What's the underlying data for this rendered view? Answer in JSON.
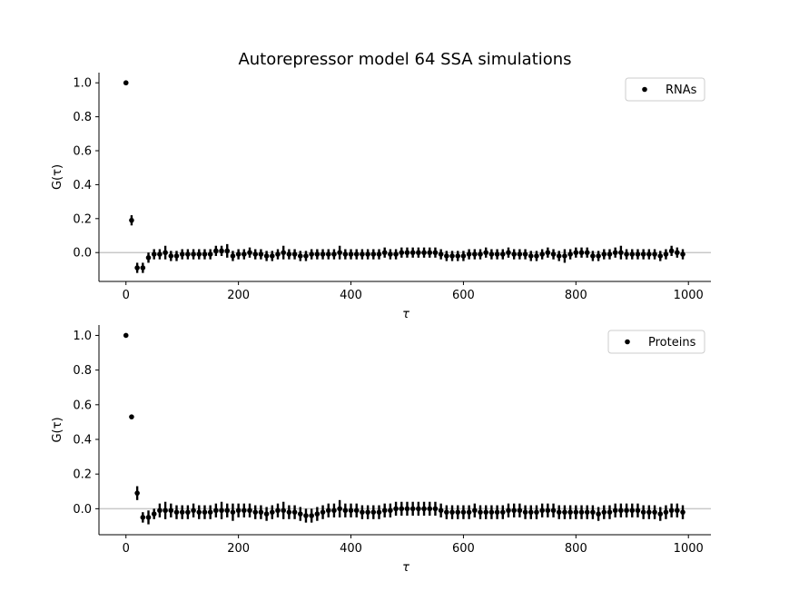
{
  "title": "Autorepressor model 64 SSA simulations",
  "colors": {
    "marker": "#000000",
    "zero_line": "#c8c8c8",
    "legend_border": "#cccccc"
  },
  "chart_data": [
    {
      "type": "scatter",
      "title": "Autorepressor model 64 SSA simulations",
      "xlabel": "τ",
      "ylabel": "G(τ)",
      "xlim": [
        -48,
        1040
      ],
      "ylim": [
        -0.17,
        1.06
      ],
      "xticks": [
        0,
        200,
        400,
        600,
        800,
        1000
      ],
      "xtick_labels": [
        "0",
        "200",
        "400",
        "600",
        "800",
        "1000"
      ],
      "yticks": [
        1.0,
        0.8,
        0.6,
        0.4,
        0.2,
        0.0
      ],
      "ytick_labels": [
        "1.0",
        "0.8",
        "0.6",
        "0.4",
        "0.2",
        "0.0"
      ],
      "reference_line_y": 0,
      "grid": false,
      "legend_position": "top-right",
      "series": [
        {
          "name": "RNAs",
          "x": [
            0,
            10,
            20,
            30,
            40,
            50,
            60,
            70,
            80,
            90,
            100,
            110,
            120,
            130,
            140,
            150,
            160,
            170,
            180,
            190,
            200,
            210,
            220,
            230,
            240,
            250,
            260,
            270,
            280,
            290,
            300,
            310,
            320,
            330,
            340,
            350,
            360,
            370,
            380,
            390,
            400,
            410,
            420,
            430,
            440,
            450,
            460,
            470,
            480,
            490,
            500,
            510,
            520,
            530,
            540,
            550,
            560,
            570,
            580,
            590,
            600,
            610,
            620,
            630,
            640,
            650,
            660,
            670,
            680,
            690,
            700,
            710,
            720,
            730,
            740,
            750,
            760,
            770,
            780,
            790,
            800,
            810,
            820,
            830,
            840,
            850,
            860,
            870,
            880,
            890,
            900,
            910,
            920,
            930,
            940,
            950,
            960,
            970,
            980,
            990
          ],
          "y": [
            1.0,
            0.19,
            -0.09,
            -0.09,
            -0.03,
            -0.01,
            -0.01,
            0.0,
            -0.02,
            -0.02,
            -0.01,
            -0.01,
            -0.01,
            -0.01,
            -0.01,
            -0.01,
            0.01,
            0.01,
            0.01,
            -0.02,
            -0.01,
            -0.01,
            0.0,
            -0.01,
            -0.01,
            -0.02,
            -0.02,
            -0.01,
            0.0,
            -0.01,
            -0.01,
            -0.02,
            -0.02,
            -0.01,
            -0.01,
            -0.01,
            -0.01,
            -0.01,
            0.0,
            -0.01,
            -0.01,
            -0.01,
            -0.01,
            -0.01,
            -0.01,
            -0.01,
            0.0,
            -0.01,
            -0.01,
            0.0,
            0.0,
            0.0,
            0.0,
            0.0,
            0.0,
            0.0,
            -0.01,
            -0.02,
            -0.02,
            -0.02,
            -0.02,
            -0.01,
            -0.01,
            -0.01,
            0.0,
            -0.01,
            -0.01,
            -0.01,
            0.0,
            -0.01,
            -0.01,
            -0.01,
            -0.02,
            -0.02,
            -0.01,
            0.0,
            -0.01,
            -0.02,
            -0.02,
            -0.01,
            0.0,
            0.0,
            0.0,
            -0.02,
            -0.02,
            -0.01,
            -0.01,
            0.0,
            0.0,
            -0.01,
            -0.01,
            -0.01,
            -0.01,
            -0.01,
            -0.01,
            -0.02,
            -0.01,
            0.01,
            0.0,
            -0.01
          ],
          "err": [
            0.0,
            0.03,
            0.03,
            0.03,
            0.03,
            0.03,
            0.03,
            0.04,
            0.03,
            0.03,
            0.03,
            0.03,
            0.03,
            0.03,
            0.03,
            0.03,
            0.03,
            0.03,
            0.04,
            0.03,
            0.03,
            0.03,
            0.03,
            0.03,
            0.03,
            0.03,
            0.03,
            0.03,
            0.04,
            0.03,
            0.03,
            0.03,
            0.03,
            0.03,
            0.03,
            0.03,
            0.03,
            0.03,
            0.04,
            0.03,
            0.03,
            0.03,
            0.03,
            0.03,
            0.03,
            0.03,
            0.03,
            0.03,
            0.03,
            0.03,
            0.03,
            0.03,
            0.03,
            0.03,
            0.03,
            0.03,
            0.03,
            0.03,
            0.03,
            0.03,
            0.03,
            0.03,
            0.03,
            0.03,
            0.03,
            0.03,
            0.03,
            0.03,
            0.03,
            0.03,
            0.03,
            0.03,
            0.03,
            0.03,
            0.03,
            0.03,
            0.03,
            0.03,
            0.04,
            0.03,
            0.03,
            0.03,
            0.03,
            0.03,
            0.03,
            0.03,
            0.03,
            0.03,
            0.04,
            0.03,
            0.03,
            0.03,
            0.03,
            0.03,
            0.03,
            0.03,
            0.03,
            0.03,
            0.03,
            0.03
          ]
        }
      ]
    },
    {
      "type": "scatter",
      "xlabel": "τ",
      "ylabel": "G(τ)",
      "xlim": [
        -48,
        1040
      ],
      "ylim": [
        -0.15,
        1.06
      ],
      "xticks": [
        0,
        200,
        400,
        600,
        800,
        1000
      ],
      "xtick_labels": [
        "0",
        "200",
        "400",
        "600",
        "800",
        "1000"
      ],
      "yticks": [
        1.0,
        0.8,
        0.6,
        0.4,
        0.2,
        0.0
      ],
      "ytick_labels": [
        "1.0",
        "0.8",
        "0.6",
        "0.4",
        "0.2",
        "0.0"
      ],
      "reference_line_y": 0,
      "grid": false,
      "legend_position": "top-right",
      "series": [
        {
          "name": "Proteins",
          "x": [
            0,
            10,
            20,
            30,
            40,
            50,
            60,
            70,
            80,
            90,
            100,
            110,
            120,
            130,
            140,
            150,
            160,
            170,
            180,
            190,
            200,
            210,
            220,
            230,
            240,
            250,
            260,
            270,
            280,
            290,
            300,
            310,
            320,
            330,
            340,
            350,
            360,
            370,
            380,
            390,
            400,
            410,
            420,
            430,
            440,
            450,
            460,
            470,
            480,
            490,
            500,
            510,
            520,
            530,
            540,
            550,
            560,
            570,
            580,
            590,
            600,
            610,
            620,
            630,
            640,
            650,
            660,
            670,
            680,
            690,
            700,
            710,
            720,
            730,
            740,
            750,
            760,
            770,
            780,
            790,
            800,
            810,
            820,
            830,
            840,
            850,
            860,
            870,
            880,
            890,
            900,
            910,
            920,
            930,
            940,
            950,
            960,
            970,
            980,
            990
          ],
          "y": [
            1.0,
            0.53,
            0.09,
            -0.05,
            -0.05,
            -0.03,
            -0.01,
            -0.01,
            -0.01,
            -0.02,
            -0.02,
            -0.02,
            -0.01,
            -0.02,
            -0.02,
            -0.02,
            -0.01,
            -0.01,
            -0.01,
            -0.02,
            -0.01,
            -0.01,
            -0.01,
            -0.02,
            -0.02,
            -0.03,
            -0.02,
            -0.01,
            -0.01,
            -0.02,
            -0.02,
            -0.03,
            -0.04,
            -0.04,
            -0.03,
            -0.02,
            -0.01,
            -0.01,
            0.0,
            -0.01,
            -0.01,
            -0.01,
            -0.02,
            -0.02,
            -0.02,
            -0.02,
            -0.01,
            -0.01,
            0.0,
            0.0,
            0.0,
            0.0,
            0.0,
            0.0,
            0.0,
            0.0,
            -0.01,
            -0.02,
            -0.02,
            -0.02,
            -0.02,
            -0.02,
            -0.01,
            -0.02,
            -0.02,
            -0.02,
            -0.02,
            -0.02,
            -0.01,
            -0.01,
            -0.01,
            -0.02,
            -0.02,
            -0.02,
            -0.01,
            -0.01,
            -0.01,
            -0.02,
            -0.02,
            -0.02,
            -0.02,
            -0.02,
            -0.02,
            -0.02,
            -0.03,
            -0.02,
            -0.02,
            -0.01,
            -0.01,
            -0.01,
            -0.01,
            -0.01,
            -0.02,
            -0.02,
            -0.02,
            -0.03,
            -0.02,
            -0.01,
            -0.01,
            -0.02
          ],
          "err": [
            0.0,
            0.01,
            0.04,
            0.03,
            0.04,
            0.03,
            0.04,
            0.05,
            0.04,
            0.04,
            0.04,
            0.04,
            0.04,
            0.04,
            0.04,
            0.04,
            0.04,
            0.05,
            0.04,
            0.05,
            0.04,
            0.04,
            0.04,
            0.04,
            0.04,
            0.04,
            0.04,
            0.04,
            0.05,
            0.04,
            0.04,
            0.04,
            0.04,
            0.04,
            0.04,
            0.04,
            0.04,
            0.04,
            0.05,
            0.04,
            0.04,
            0.04,
            0.04,
            0.04,
            0.04,
            0.04,
            0.04,
            0.04,
            0.04,
            0.04,
            0.04,
            0.04,
            0.04,
            0.04,
            0.04,
            0.04,
            0.04,
            0.04,
            0.04,
            0.04,
            0.04,
            0.04,
            0.04,
            0.04,
            0.04,
            0.04,
            0.04,
            0.04,
            0.04,
            0.04,
            0.04,
            0.04,
            0.04,
            0.04,
            0.04,
            0.04,
            0.04,
            0.04,
            0.04,
            0.04,
            0.04,
            0.04,
            0.04,
            0.04,
            0.04,
            0.04,
            0.04,
            0.04,
            0.04,
            0.04,
            0.04,
            0.04,
            0.04,
            0.04,
            0.04,
            0.04,
            0.04,
            0.04,
            0.04,
            0.04
          ]
        }
      ]
    }
  ]
}
